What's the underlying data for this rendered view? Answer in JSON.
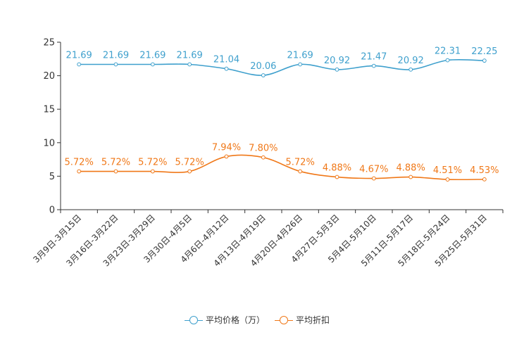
{
  "chart_data": {
    "type": "line",
    "title": "",
    "xlabel": "",
    "ylabel": "",
    "ylim": [
      0,
      25
    ],
    "yticks": [
      0,
      5,
      10,
      15,
      20,
      25
    ],
    "categories": [
      "3月9日-3月15日",
      "3月16日-3月22日",
      "3月23日-3月29日",
      "3月30日-4月5日",
      "4月6日-4月12日",
      "4月13日-4月19日",
      "4月20日-4月26日",
      "4月27日-5月3日",
      "5月4日-5月10日",
      "5月11日-5月17日",
      "5月18日-5月24日",
      "5月25日-5月31日"
    ],
    "series": [
      {
        "name": "平均价格（万）",
        "color": "#3fa0cd",
        "values": [
          21.69,
          21.69,
          21.69,
          21.69,
          21.04,
          20.06,
          21.69,
          20.92,
          21.47,
          20.92,
          22.31,
          22.25
        ],
        "labels": [
          "21.69",
          "21.69",
          "21.69",
          "21.69",
          "21.04",
          "20.06",
          "21.69",
          "20.92",
          "21.47",
          "20.92",
          "22.31",
          "22.25"
        ]
      },
      {
        "name": "平均折扣",
        "color": "#f07818",
        "values": [
          5.72,
          5.72,
          5.72,
          5.72,
          7.94,
          7.8,
          5.72,
          4.88,
          4.67,
          4.88,
          4.51,
          4.53
        ],
        "labels": [
          "5.72%",
          "5.72%",
          "5.72%",
          "5.72%",
          "7.94%",
          "7.80%",
          "5.72%",
          "4.88%",
          "4.67%",
          "4.88%",
          "4.51%",
          "4.53%"
        ]
      }
    ],
    "legend_position": "bottom-center"
  }
}
